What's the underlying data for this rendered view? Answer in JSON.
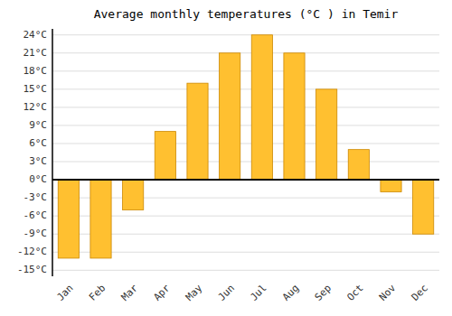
{
  "chart_data": {
    "type": "bar",
    "title": "Average monthly temperatures (°C ) in Temir",
    "categories": [
      "Jan",
      "Feb",
      "Mar",
      "Apr",
      "May",
      "Jun",
      "Jul",
      "Aug",
      "Sep",
      "Oct",
      "Nov",
      "Dec"
    ],
    "values": [
      -13,
      -13,
      -5,
      8,
      16,
      21,
      24,
      21,
      15,
      5,
      -2,
      -9
    ],
    "color": "#FFC030",
    "ylim": [
      -16,
      25
    ],
    "yticks": [
      {
        "value": -15,
        "label": "-15°C"
      },
      {
        "value": -12,
        "label": "-12°C"
      },
      {
        "value": -9,
        "label": "-9°C"
      },
      {
        "value": -6,
        "label": "-6°C"
      },
      {
        "value": -3,
        "label": "-3°C"
      },
      {
        "value": 0,
        "label": "0°C"
      },
      {
        "value": 3,
        "label": "3°C"
      },
      {
        "value": 6,
        "label": "6°C"
      },
      {
        "value": 9,
        "label": "9°C"
      },
      {
        "value": 12,
        "label": "12°C"
      },
      {
        "value": 15,
        "label": "15°C"
      },
      {
        "value": 18,
        "label": "18°C"
      },
      {
        "value": 21,
        "label": "21°C"
      },
      {
        "value": 24,
        "label": "24°C"
      }
    ],
    "grid": true
  }
}
